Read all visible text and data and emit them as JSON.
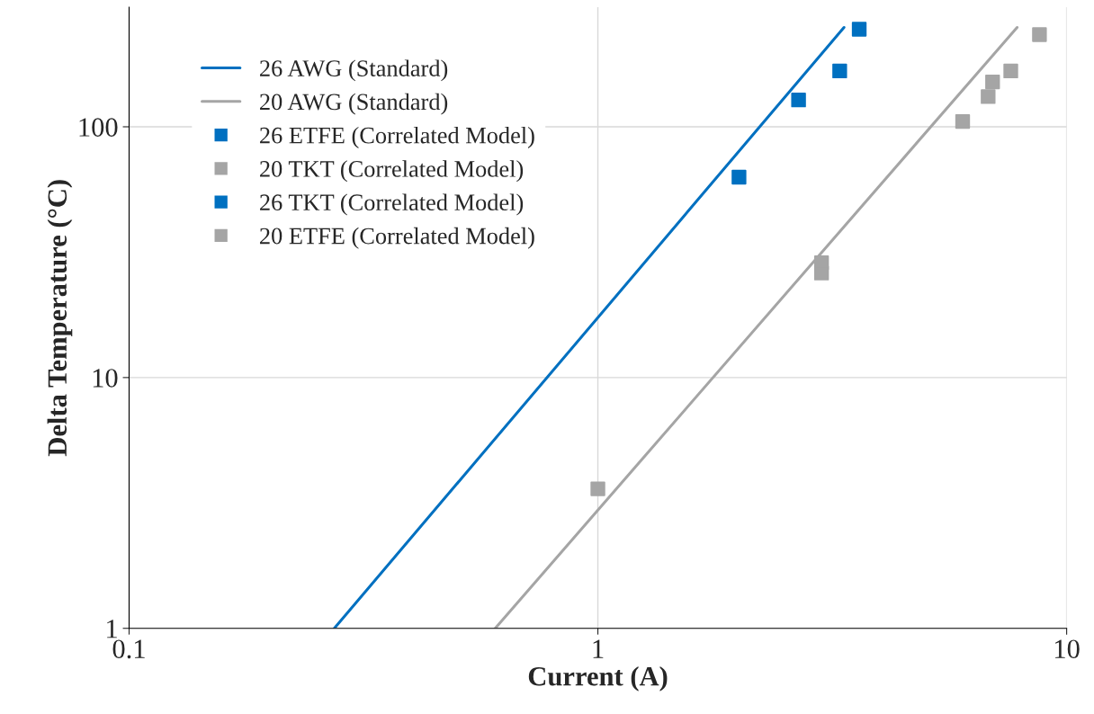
{
  "chart_data": {
    "type": "scatter",
    "xlabel": "Current (A)",
    "ylabel": "Delta Temperature (°C)",
    "log": "xy",
    "grid": true,
    "legend": "top left",
    "xlim": [
      0.1,
      10
    ],
    "xticks": [
      0.1,
      1,
      10
    ],
    "ylim": [
      1,
      300
    ],
    "yticks": [
      1,
      10,
      100
    ],
    "series": [
      {
        "name": "26 AWG (Standard)",
        "type": "line",
        "marker": "none",
        "color": "#0070c0",
        "x": [
          0.274,
          3.35
        ],
        "values": [
          1,
          249
        ]
      },
      {
        "name": "20 AWG (Standard)",
        "type": "line",
        "marker": "none",
        "color": "#a5a5a5",
        "x": [
          0.604,
          7.84
        ],
        "values": [
          1,
          249
        ]
      },
      {
        "name": "26 ETFE (Correlated Model)",
        "type": "scatter",
        "marker": "square",
        "color": "#0070c0",
        "x": [
          2,
          3.28
        ],
        "values": [
          63,
          167
        ]
      },
      {
        "name": "20 TKT (Correlated Model)",
        "type": "scatter",
        "marker": "square",
        "color": "#a5a5a5",
        "x": [
          7.6
        ],
        "values": [
          167
        ]
      },
      {
        "name": "26 TKT (Correlated Model)",
        "type": "scatter",
        "marker": "square",
        "color": "#0070c0",
        "x": [
          2.68,
          3.61
        ],
        "values": [
          128,
          245
        ]
      },
      {
        "name": "20 ETFE (Correlated Model)",
        "type": "scatter",
        "marker": "square",
        "color": "#a5a5a5",
        "x": [
          1,
          3,
          3,
          6,
          6.8,
          6.95,
          8.75
        ],
        "values": [
          3.6,
          28.7,
          26.1,
          105,
          132,
          151,
          233
        ]
      }
    ]
  }
}
